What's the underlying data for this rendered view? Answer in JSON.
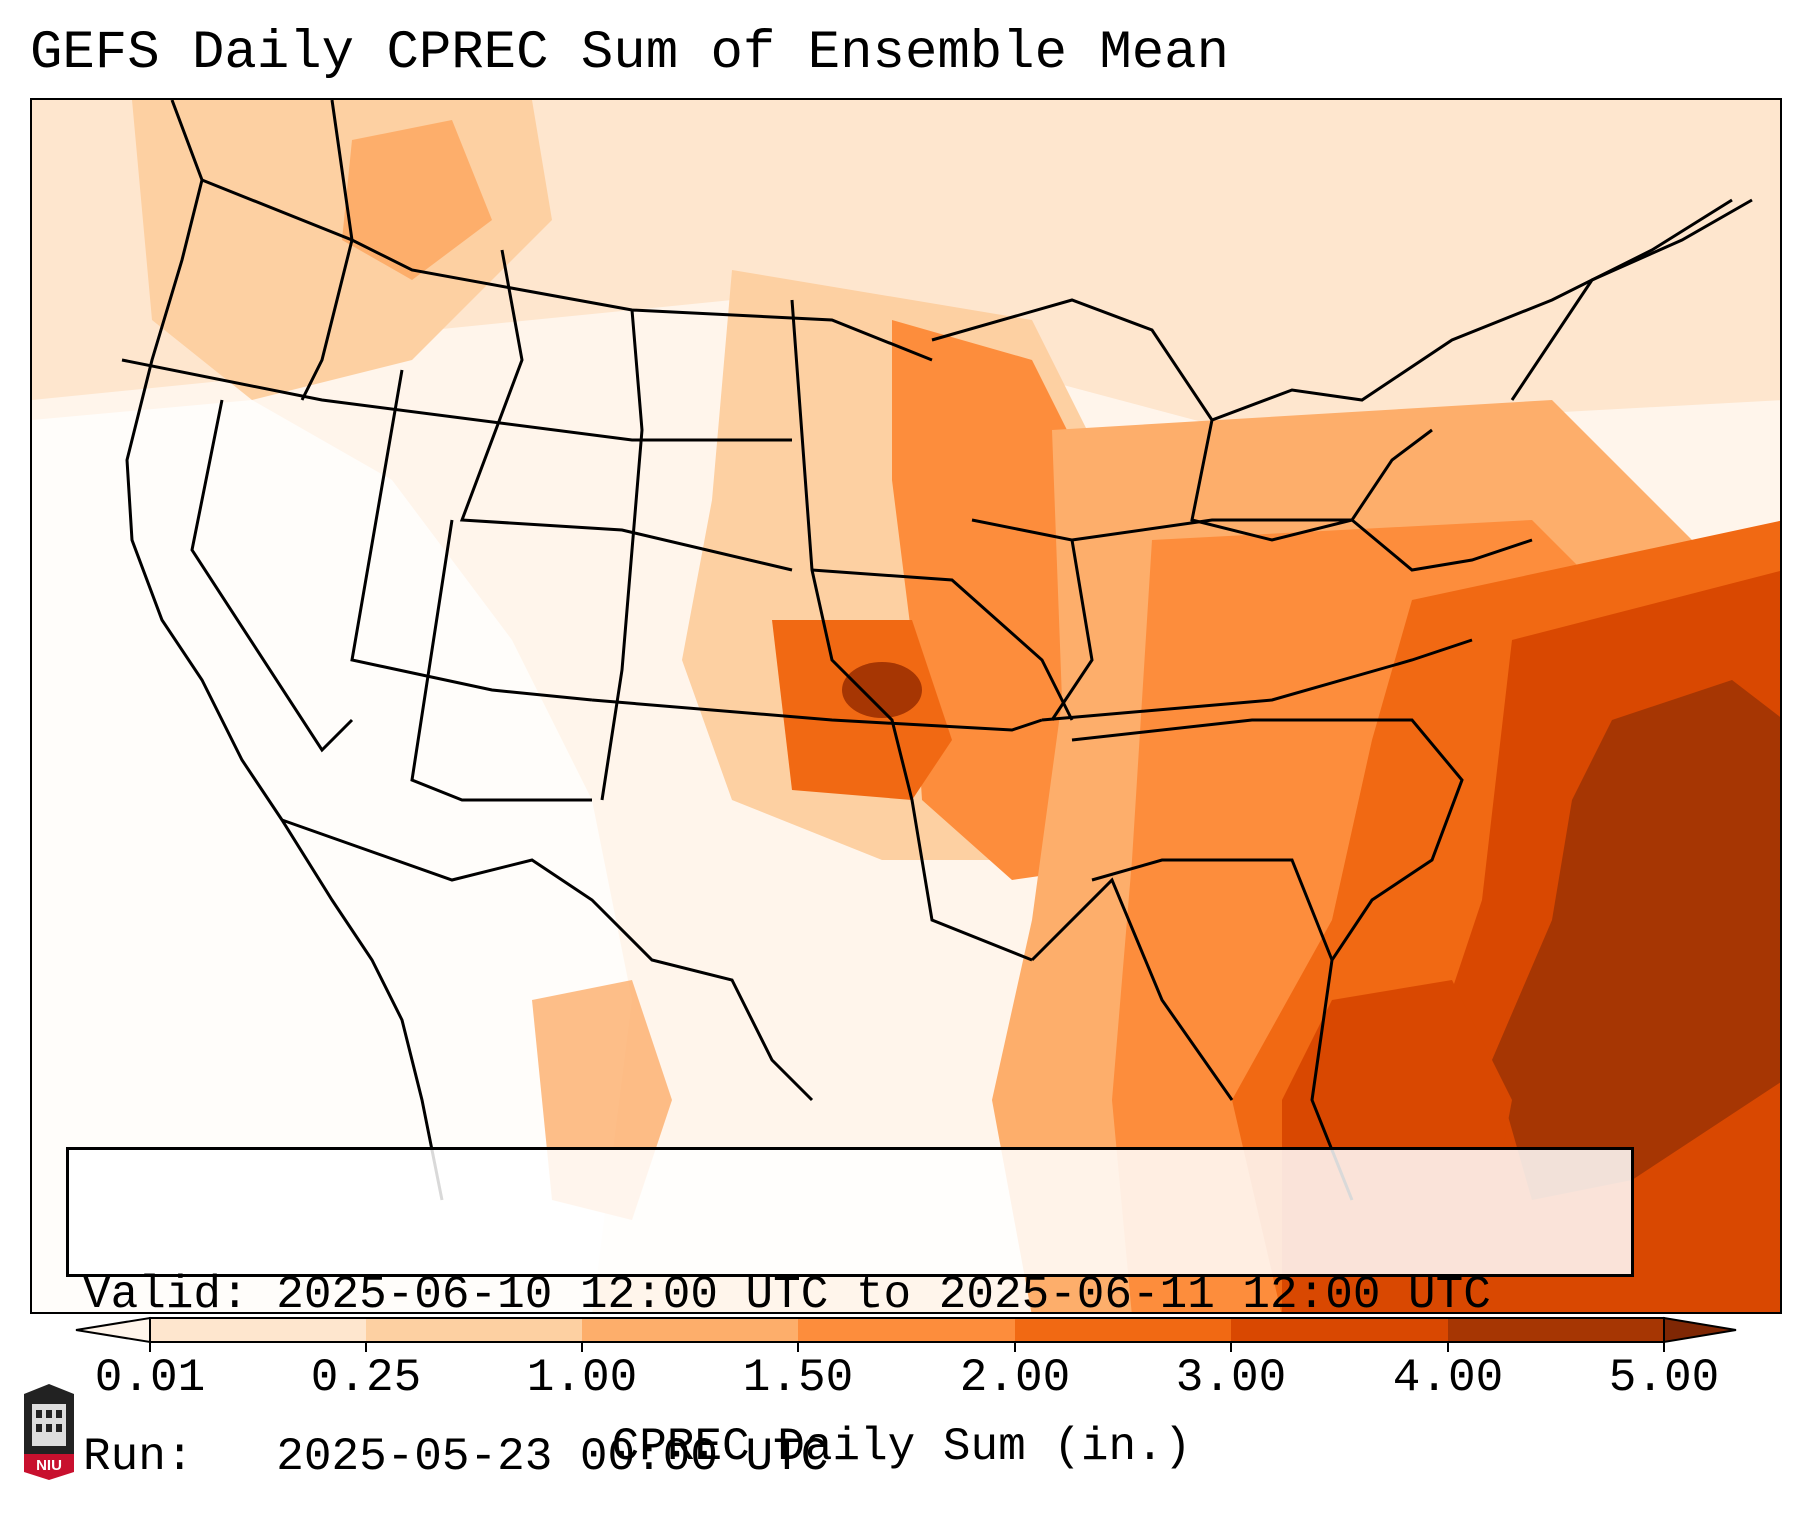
{
  "title": "GEFS Daily CPREC Sum of Ensemble Mean",
  "info": {
    "valid_label": "Valid:",
    "valid_value": "2025-06-10 12:00 UTC to 2025-06-11 12:00 UTC",
    "run_label": "Run:",
    "run_value": "2025-05-23 00:00 UTC"
  },
  "colorbar": {
    "label": "CPREC Daily Sum (in.)",
    "ticks": [
      "0.01",
      "0.25",
      "1.00",
      "1.50",
      "2.00",
      "3.00",
      "4.00",
      "5.00"
    ],
    "colors": [
      "#fff5eb",
      "#fee6ce",
      "#fdd0a2",
      "#fdae6b",
      "#fd8d3c",
      "#f16913",
      "#d94801",
      "#a63603",
      "#7f2704"
    ],
    "extend": "both"
  },
  "logo": {
    "text": "NIU"
  }
}
